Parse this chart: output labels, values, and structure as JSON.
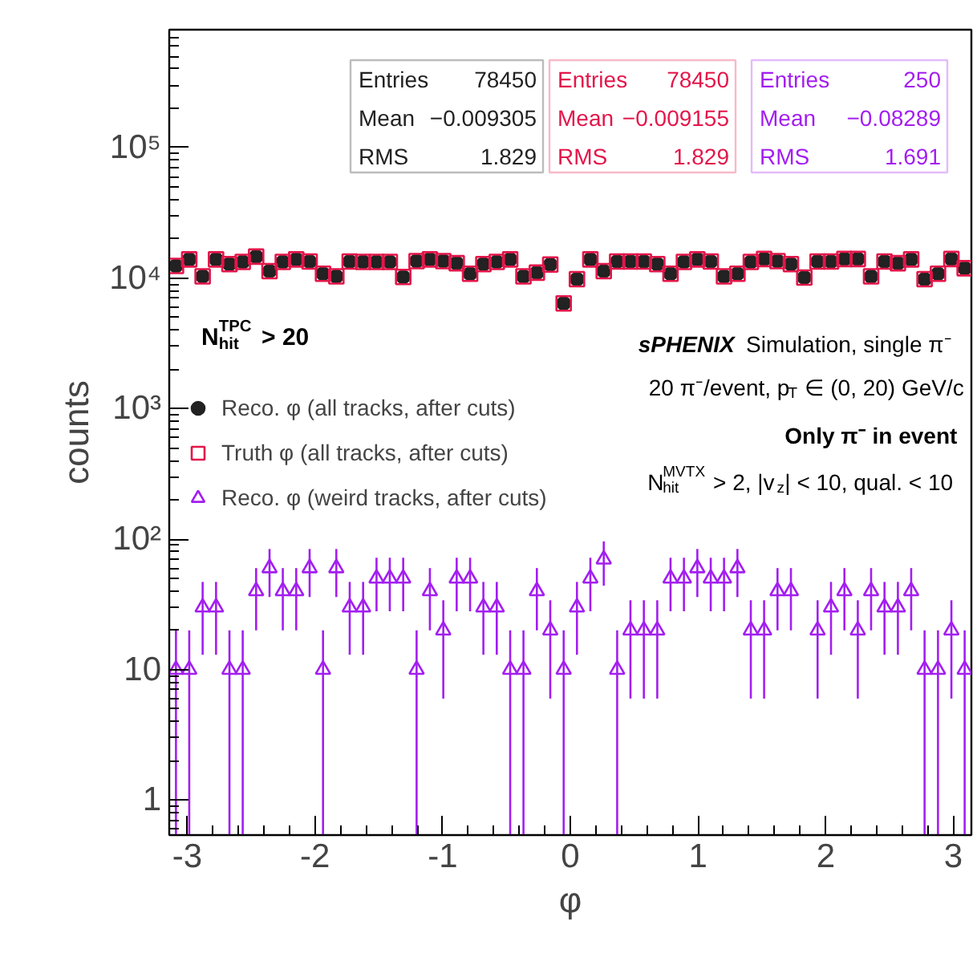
{
  "chart_data": {
    "type": "scatter",
    "xlabel": "φ",
    "ylabel": "counts",
    "legend_title": "N$^{TPC}$$_{hit}$ > 20",
    "x": [
      -3.089,
      -2.985,
      -2.88,
      -2.775,
      -2.67,
      -2.566,
      -2.461,
      -2.356,
      -2.252,
      -2.147,
      -2.042,
      -1.937,
      -1.833,
      -1.728,
      -1.623,
      -1.518,
      -1.414,
      -1.309,
      -1.204,
      -1.1,
      -0.995,
      -0.89,
      -0.785,
      -0.681,
      -0.576,
      -0.471,
      -0.367,
      -0.262,
      -0.157,
      -0.052,
      0.052,
      0.157,
      0.262,
      0.367,
      0.471,
      0.576,
      0.681,
      0.785,
      0.89,
      0.995,
      1.1,
      1.204,
      1.309,
      1.414,
      1.518,
      1.623,
      1.728,
      1.833,
      1.937,
      2.042,
      2.147,
      2.252,
      2.356,
      2.461,
      2.566,
      2.67,
      2.775,
      2.88,
      2.985,
      3.089
    ],
    "series": [
      {
        "name": "Reco. φ (all tracks, after cuts)",
        "color": "#222222",
        "marker": "circle",
        "values": [
          12400,
          13900,
          10300,
          13900,
          12800,
          13300,
          14600,
          11300,
          13300,
          13900,
          13400,
          10800,
          10300,
          13400,
          13300,
          13300,
          13300,
          10200,
          13500,
          13900,
          13500,
          13000,
          10800,
          12800,
          13300,
          13900,
          10300,
          11000,
          12700,
          6400,
          9800,
          13900,
          11300,
          13400,
          13400,
          13400,
          12800,
          10800,
          13300,
          13900,
          13400,
          10300,
          10800,
          13300,
          14000,
          13500,
          12800,
          10100,
          13400,
          13400,
          14000,
          14000,
          10300,
          13400,
          13000,
          13900,
          9800,
          10800,
          14000,
          11900
        ]
      },
      {
        "name": "Truth φ (all tracks, after cuts)",
        "color": "#e3164a",
        "marker": "square",
        "values": [
          12400,
          13900,
          10300,
          13900,
          12800,
          13300,
          14600,
          11300,
          13300,
          13900,
          13400,
          10800,
          10300,
          13400,
          13300,
          13300,
          13300,
          10200,
          13500,
          13900,
          13500,
          13000,
          10800,
          12800,
          13300,
          13900,
          10300,
          11000,
          12700,
          6400,
          9800,
          13900,
          11300,
          13400,
          13400,
          13400,
          12800,
          10800,
          13300,
          13900,
          13400,
          10300,
          10800,
          13300,
          14000,
          13500,
          12800,
          10100,
          13400,
          13400,
          14000,
          14000,
          10300,
          13400,
          13000,
          13900,
          9800,
          10800,
          14000,
          11900
        ]
      },
      {
        "name": "Reco. φ (weird tracks, after cuts)",
        "color": "#a31ef0",
        "marker": "triangle",
        "values": [
          10,
          10,
          30,
          30,
          10,
          10,
          40,
          60,
          40,
          40,
          60,
          10,
          60,
          30,
          30,
          50,
          50,
          50,
          10,
          40,
          20,
          50,
          50,
          30,
          30,
          10,
          10,
          40,
          20,
          10,
          30,
          50,
          70,
          10,
          20,
          20,
          20,
          50,
          50,
          60,
          50,
          50,
          60,
          20,
          20,
          40,
          40,
          null,
          20,
          30,
          40,
          20,
          40,
          30,
          30,
          40,
          10,
          10,
          20,
          10
        ],
        "errors": [
          [
            0.54,
            20
          ],
          [
            0.54,
            20
          ],
          17,
          17,
          [
            0.54,
            20
          ],
          [
            0.54,
            20
          ],
          20,
          24,
          20,
          20,
          24,
          [
            0.54,
            20
          ],
          24,
          17,
          17,
          22,
          22,
          22,
          [
            0.54,
            20
          ],
          20,
          14,
          22,
          22,
          17,
          17,
          [
            0.54,
            20
          ],
          [
            0.54,
            20
          ],
          20,
          14,
          [
            0.54,
            20
          ],
          17,
          22,
          26,
          [
            0.54,
            20
          ],
          14,
          14,
          14,
          22,
          22,
          24,
          22,
          22,
          24,
          14,
          14,
          20,
          20,
          null,
          14,
          17,
          20,
          14,
          20,
          17,
          17,
          20,
          [
            0.54,
            20
          ],
          [
            0.54,
            20
          ],
          14,
          [
            0.54,
            20
          ]
        ]
      }
    ],
    "xlim": [
      -3.1416,
      3.1416
    ],
    "xticks": [
      -3,
      -2,
      -1,
      0,
      1,
      2,
      3
    ],
    "ylim": [
      0.54,
      800000
    ],
    "yticks": [
      1,
      10,
      {
        "value": 100,
        "label": "10²"
      },
      {
        "value": 1000,
        "label": "10³"
      },
      {
        "value": 10000,
        "label": "10⁴"
      },
      {
        "value": 100000,
        "label": "10⁵"
      }
    ],
    "log": true,
    "grid": false,
    "legend": "left",
    "annotations": [
      "Entries 78450",
      "Mean −0.009305",
      "RMS 1.829",
      "Entries 78450",
      "Mean −0.009155",
      "RMS 1.829",
      "Entries 250",
      "Mean −0.08289",
      "RMS 1.691",
      "sPHENIX Simulation, single π⁻",
      "20 π⁻/event, p$_{T}$ ∈ (0, 20) GeV/c",
      "Only π⁻ in event",
      "N$^{MVTX}$$_{hit}$ > 2, |v$_{z}$| < 10, qual. < 10"
    ]
  }
}
